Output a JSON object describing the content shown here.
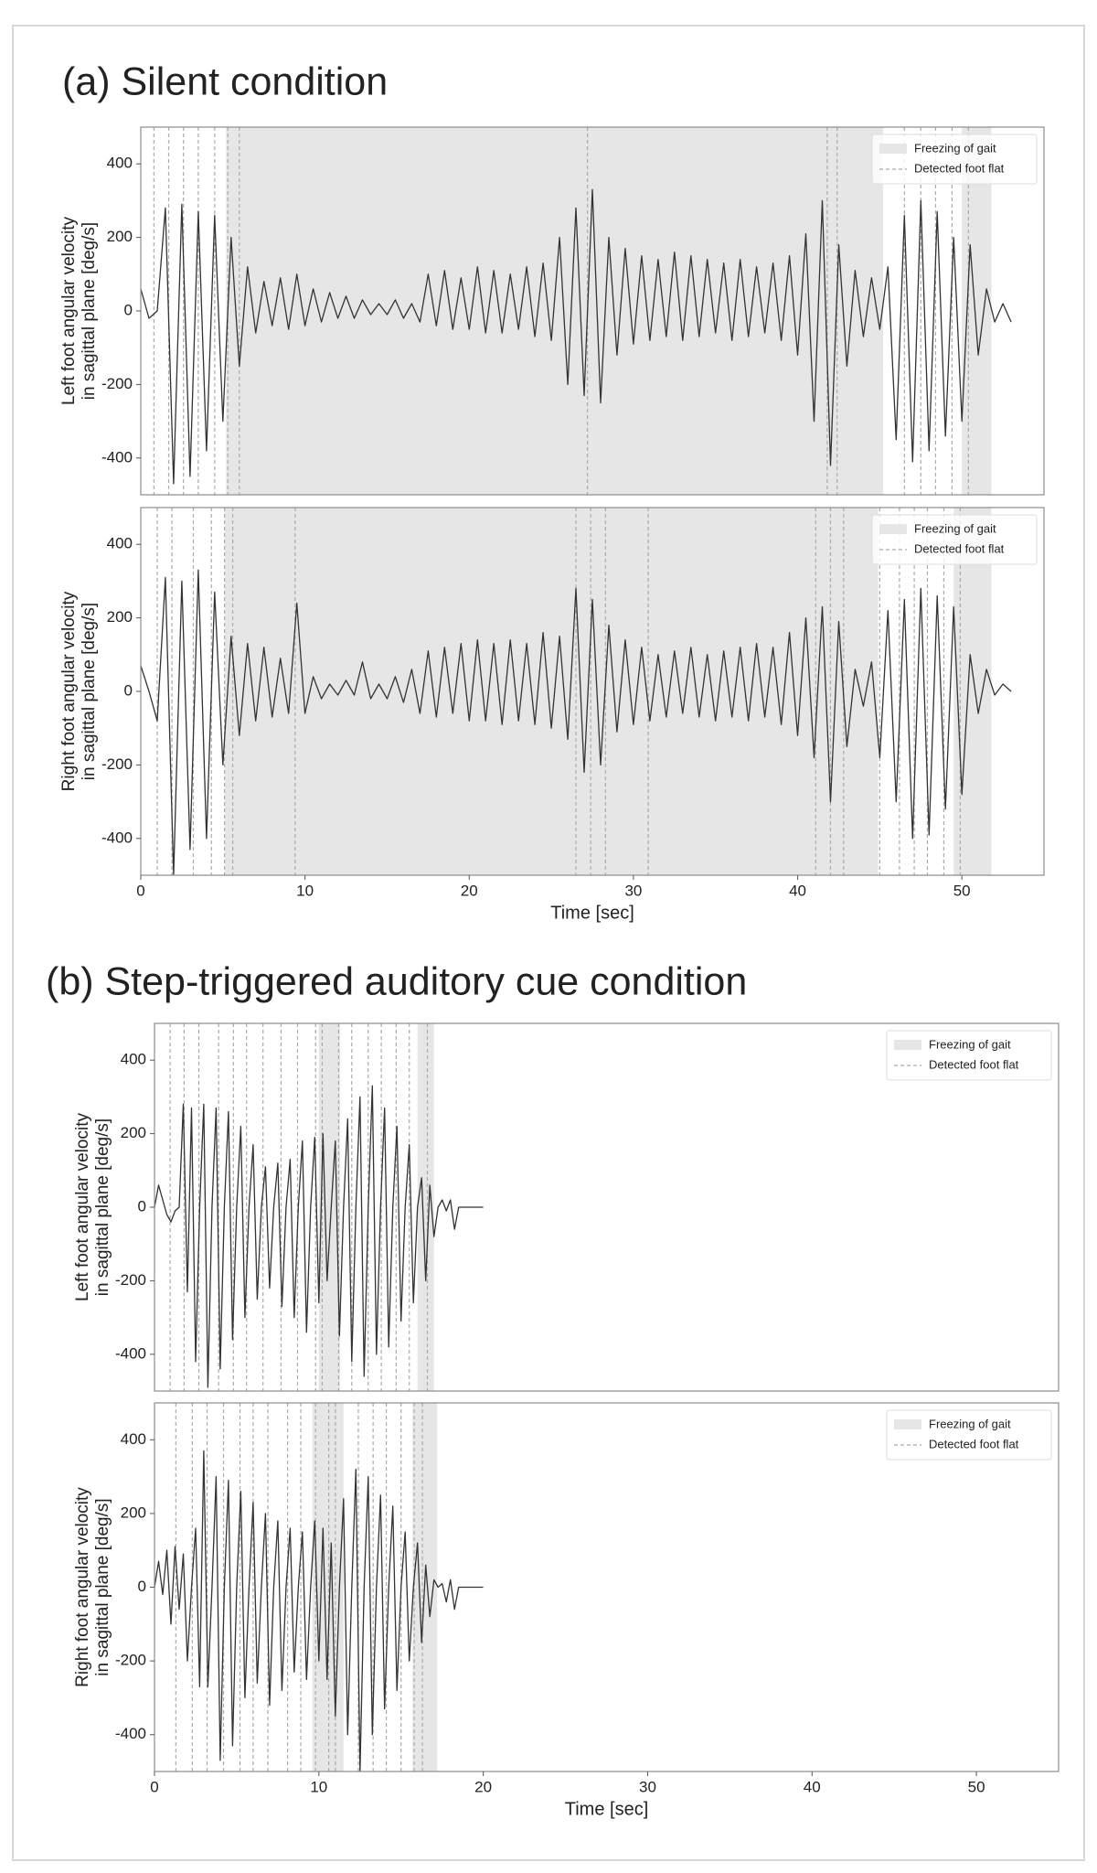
{
  "chart_data": [
    {
      "type": "line",
      "title": "(a) Silent condition",
      "ylabel": [
        "Left foot angular velocity",
        "in sagittal plane [deg/s]"
      ],
      "xlim": [
        0,
        55
      ],
      "ylim": [
        -500,
        500
      ],
      "yticks": [
        -400,
        -200,
        0,
        200,
        400
      ],
      "legend": "upper right",
      "color": "#333333",
      "fog": {
        "name": "Freezing of gait",
        "color": "#e6e6e6",
        "spans": [
          [
            5.2,
            45.2
          ],
          [
            50,
            51.8
          ]
        ]
      },
      "foot_flat": {
        "name": "Detected foot flat",
        "color": "#aaaaaa",
        "x": [
          0.8,
          1.7,
          2.6,
          3.5,
          4.5,
          5.3,
          6.0,
          27.2,
          41.8,
          42.4,
          46.5,
          47.5,
          48.4,
          49.4,
          50.4
        ]
      },
      "x": [
        0,
        0.5,
        1,
        1.5,
        2,
        2.5,
        3,
        3.5,
        4,
        4.5,
        5,
        5.5,
        6,
        6.5,
        7,
        7.5,
        8,
        8.5,
        9,
        9.5,
        10,
        10.5,
        11,
        11.5,
        12,
        12.5,
        13,
        13.5,
        14,
        14.5,
        15,
        15.5,
        16,
        16.5,
        17,
        17.5,
        18,
        18.5,
        19,
        19.5,
        20,
        20.5,
        21,
        21.5,
        22,
        22.5,
        23,
        23.5,
        24,
        24.5,
        25,
        25.5,
        26,
        26.5,
        27,
        27.5,
        28,
        28.5,
        29,
        29.5,
        30,
        30.5,
        31,
        31.5,
        32,
        32.5,
        33,
        33.5,
        34,
        34.5,
        35,
        35.5,
        36,
        36.5,
        37,
        37.5,
        38,
        38.5,
        39,
        39.5,
        40,
        40.5,
        41,
        41.5,
        42,
        42.5,
        43,
        43.5,
        44,
        44.5,
        45,
        45.5,
        46,
        46.5,
        47,
        47.5,
        48,
        48.5,
        49,
        49.5,
        50,
        50.5,
        51,
        51.5,
        52,
        52.5,
        53
      ],
      "values": [
        60,
        -20,
        0,
        280,
        -470,
        290,
        -450,
        270,
        -380,
        260,
        -300,
        200,
        -150,
        120,
        -60,
        80,
        -40,
        90,
        -50,
        100,
        -40,
        60,
        -30,
        50,
        -20,
        40,
        -20,
        30,
        -10,
        20,
        -10,
        30,
        -20,
        20,
        -30,
        100,
        -40,
        110,
        -50,
        90,
        -50,
        120,
        -60,
        110,
        -60,
        100,
        -50,
        120,
        -70,
        130,
        -80,
        200,
        -200,
        280,
        -230,
        330,
        -250,
        200,
        -120,
        170,
        -90,
        150,
        -80,
        140,
        -70,
        160,
        -80,
        150,
        -70,
        140,
        -60,
        130,
        -80,
        140,
        -70,
        120,
        -60,
        130,
        -80,
        150,
        -120,
        210,
        -300,
        300,
        -420,
        180,
        -150,
        110,
        -70,
        90,
        -50,
        120,
        -350,
        260,
        -410,
        300,
        -380,
        270,
        -340,
        200,
        -300,
        180,
        -120,
        60,
        -30,
        20,
        -30
      ]
    },
    {
      "type": "line",
      "ylabel": [
        "Right foot angular velocity",
        "in sagittal plane [deg/s]"
      ],
      "xlabel": "Time [sec]",
      "xlim": [
        0,
        55
      ],
      "ylim": [
        -500,
        500
      ],
      "xticks": [
        0,
        10,
        20,
        30,
        40,
        50
      ],
      "yticks": [
        -400,
        -200,
        0,
        200,
        400
      ],
      "legend": "upper right",
      "color": "#333333",
      "fog": {
        "name": "Freezing of gait",
        "color": "#e6e6e6",
        "spans": [
          [
            5.1,
            44.9
          ],
          [
            49.5,
            51.8
          ]
        ]
      },
      "foot_flat": {
        "name": "Detected foot flat",
        "color": "#aaaaaa",
        "x": [
          1.0,
          1.9,
          3.2,
          4.3,
          5.1,
          5.6,
          9.4,
          26.5,
          27.4,
          28.3,
          30.9,
          41.1,
          42.0,
          42.8,
          45.0,
          46.2,
          47.1,
          47.9,
          48.9,
          49.9
        ]
      },
      "x": [
        0,
        0.5,
        1,
        1.5,
        2,
        2.5,
        3,
        3.5,
        4,
        4.5,
        5,
        5.5,
        6,
        6.5,
        7,
        7.5,
        8,
        8.5,
        9,
        9.5,
        10,
        10.5,
        11,
        11.5,
        12,
        12.5,
        13,
        13.5,
        14,
        14.5,
        15,
        15.5,
        16,
        16.5,
        17,
        17.5,
        18,
        18.5,
        19,
        19.5,
        20,
        20.5,
        21,
        21.5,
        22,
        22.5,
        23,
        23.5,
        24,
        24.5,
        25,
        25.5,
        26,
        26.5,
        27,
        27.5,
        28,
        28.5,
        29,
        29.5,
        30,
        30.5,
        31,
        31.5,
        32,
        32.5,
        33,
        33.5,
        34,
        34.5,
        35,
        35.5,
        36,
        36.5,
        37,
        37.5,
        38,
        38.5,
        39,
        39.5,
        40,
        40.5,
        41,
        41.5,
        42,
        42.5,
        43,
        43.5,
        44,
        44.5,
        45,
        45.5,
        46,
        46.5,
        47,
        47.5,
        48,
        48.5,
        49,
        49.5,
        50,
        50.5,
        51,
        51.5,
        52,
        52.5,
        53
      ],
      "values": [
        70,
        0,
        -80,
        310,
        -500,
        300,
        -430,
        330,
        -400,
        270,
        -200,
        150,
        -120,
        130,
        -80,
        120,
        -70,
        90,
        -60,
        240,
        -60,
        40,
        -20,
        20,
        -10,
        30,
        -10,
        80,
        -20,
        20,
        -20,
        40,
        -30,
        60,
        -60,
        110,
        -70,
        120,
        -60,
        130,
        -80,
        140,
        -80,
        130,
        -90,
        140,
        -80,
        130,
        -90,
        160,
        -100,
        150,
        -130,
        280,
        -220,
        250,
        -200,
        180,
        -110,
        140,
        -90,
        120,
        -80,
        100,
        -70,
        110,
        -60,
        120,
        -70,
        100,
        -80,
        110,
        -70,
        120,
        -80,
        130,
        -70,
        120,
        -90,
        160,
        -120,
        200,
        -180,
        230,
        -300,
        190,
        -150,
        60,
        -40,
        80,
        -180,
        220,
        -300,
        250,
        -400,
        280,
        -390,
        260,
        -320,
        230,
        -280,
        100,
        -60,
        60,
        -10,
        20,
        0
      ]
    },
    {
      "type": "line",
      "title": "(b) Step-triggered auditory cue condition",
      "ylabel": [
        "Left foot angular velocity",
        "in sagittal plane [deg/s]"
      ],
      "xlim": [
        0,
        55
      ],
      "ylim": [
        -500,
        500
      ],
      "yticks": [
        -400,
        -200,
        0,
        200,
        400
      ],
      "legend": "upper right",
      "color": "#333333",
      "fog": {
        "name": "Freezing of gait",
        "color": "#e6e6e6",
        "spans": [
          [
            10.0,
            11.3
          ],
          [
            16.0,
            17.0
          ]
        ]
      },
      "foot_flat": {
        "name": "Detected foot flat",
        "color": "#aaaaaa",
        "x": [
          0.95,
          1.8,
          2.7,
          3.9,
          4.8,
          5.6,
          6.6,
          7.7,
          8.7,
          9.8,
          10.2,
          11.2,
          12.0,
          13.0,
          13.8,
          14.7,
          15.5,
          16.6
        ]
      },
      "x": [
        0,
        0.25,
        0.5,
        0.75,
        1,
        1.25,
        1.5,
        1.75,
        2,
        2.25,
        2.5,
        2.75,
        3,
        3.25,
        3.5,
        3.75,
        4,
        4.25,
        4.5,
        4.75,
        5,
        5.25,
        5.5,
        5.75,
        6,
        6.25,
        6.5,
        6.75,
        7,
        7.25,
        7.5,
        7.75,
        8,
        8.25,
        8.5,
        8.75,
        9,
        9.25,
        9.5,
        9.75,
        10,
        10.25,
        10.5,
        10.75,
        11,
        11.25,
        11.5,
        11.75,
        12,
        12.25,
        12.5,
        12.75,
        13,
        13.25,
        13.5,
        13.75,
        14,
        14.25,
        14.5,
        14.75,
        15,
        15.25,
        15.5,
        15.75,
        16,
        16.25,
        16.5,
        16.75,
        17,
        17.25,
        17.5,
        17.75,
        18,
        18.25,
        18.5,
        18.75,
        19,
        19.25,
        19.5,
        19.75,
        20
      ],
      "values": [
        0,
        60,
        20,
        -20,
        -40,
        -10,
        0,
        280,
        -230,
        270,
        -420,
        0,
        280,
        -490,
        0,
        270,
        -440,
        0,
        260,
        -360,
        0,
        220,
        -300,
        0,
        170,
        -250,
        0,
        110,
        -220,
        0,
        120,
        -270,
        0,
        130,
        -300,
        0,
        180,
        -340,
        0,
        190,
        -260,
        200,
        -200,
        0,
        180,
        -350,
        0,
        240,
        -420,
        0,
        300,
        -460,
        0,
        330,
        -400,
        0,
        270,
        -380,
        0,
        220,
        -310,
        0,
        170,
        -260,
        0,
        80,
        -200,
        60,
        -80,
        0,
        20,
        -10,
        20,
        -60,
        0,
        0,
        0,
        0,
        0,
        0,
        0
      ]
    },
    {
      "type": "line",
      "ylabel": [
        "Right foot angular velocity",
        "in sagittal plane [deg/s]"
      ],
      "xlabel": "Time [sec]",
      "xlim": [
        0,
        55
      ],
      "ylim": [
        -500,
        500
      ],
      "xticks": [
        0,
        10,
        20,
        30,
        40,
        50
      ],
      "yticks": [
        -400,
        -200,
        0,
        200,
        400
      ],
      "legend": "upper right",
      "color": "#333333",
      "fog": {
        "name": "Freezing of gait",
        "color": "#e6e6e6",
        "spans": [
          [
            9.6,
            11.5
          ],
          [
            15.7,
            17.2
          ]
        ]
      },
      "foot_flat": {
        "name": "Detected foot flat",
        "color": "#aaaaaa",
        "x": [
          1.3,
          2.3,
          3.2,
          4.2,
          5.2,
          6.0,
          6.9,
          8.1,
          8.9,
          9.8,
          10.6,
          11.0,
          12.4,
          13.3,
          14.1,
          15.0,
          15.8,
          16.3
        ]
      },
      "x": [
        0,
        0.25,
        0.5,
        0.75,
        1,
        1.25,
        1.5,
        1.75,
        2,
        2.25,
        2.5,
        2.75,
        3,
        3.25,
        3.5,
        3.75,
        4,
        4.25,
        4.5,
        4.75,
        5,
        5.25,
        5.5,
        5.75,
        6,
        6.25,
        6.5,
        6.75,
        7,
        7.25,
        7.5,
        7.75,
        8,
        8.25,
        8.5,
        8.75,
        9,
        9.25,
        9.5,
        9.75,
        10,
        10.25,
        10.5,
        10.75,
        11,
        11.25,
        11.5,
        11.75,
        12,
        12.25,
        12.5,
        12.75,
        13,
        13.25,
        13.5,
        13.75,
        14,
        14.25,
        14.5,
        14.75,
        15,
        15.25,
        15.5,
        15.75,
        16,
        16.25,
        16.5,
        16.75,
        17,
        17.25,
        17.5,
        17.75,
        18,
        18.25,
        18.5,
        18.75,
        19,
        19.25,
        19.5,
        19.75,
        20
      ],
      "values": [
        0,
        70,
        -20,
        100,
        -100,
        110,
        -60,
        90,
        -200,
        0,
        160,
        -270,
        370,
        -270,
        0,
        300,
        -470,
        0,
        290,
        -430,
        0,
        260,
        -300,
        0,
        230,
        -260,
        0,
        200,
        -320,
        0,
        180,
        -280,
        0,
        160,
        -230,
        0,
        150,
        -250,
        0,
        180,
        -200,
        160,
        -250,
        120,
        -350,
        0,
        240,
        -400,
        0,
        320,
        -500,
        0,
        300,
        -400,
        0,
        250,
        -330,
        0,
        220,
        -280,
        0,
        150,
        -200,
        0,
        120,
        -150,
        60,
        -80,
        20,
        0,
        10,
        -40,
        20,
        -60,
        0,
        0,
        0,
        0,
        0,
        0,
        0
      ]
    }
  ]
}
